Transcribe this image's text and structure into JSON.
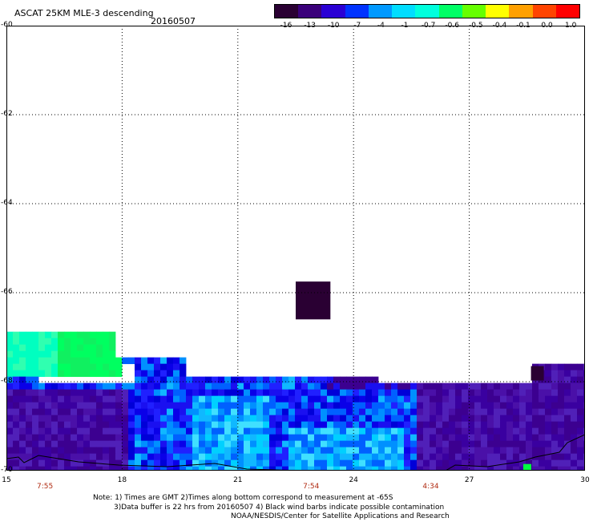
{
  "header": {
    "title": "ASCAT 25KM MLE-3 descending",
    "date": "20160507"
  },
  "colorbar": {
    "labels": [
      "-16",
      "-13",
      "-10",
      "-7",
      "-4",
      "-1",
      "-0.7",
      "-0.6",
      "-0.5",
      "-0.4",
      "-0.1",
      "0.0",
      "1.0"
    ],
    "colors": [
      "#2a0033",
      "#3a007a",
      "#2a00d4",
      "#0033ff",
      "#0099ff",
      "#00ddff",
      "#00ffdd",
      "#00ff66",
      "#66ff00",
      "#ffff00",
      "#ffa000",
      "#ff4400",
      "#ff0000"
    ]
  },
  "map": {
    "lat_ticks": [
      "-60",
      "-62",
      "-64",
      "-66",
      "-68",
      "-70"
    ],
    "lon_ticks": [
      "15",
      "18",
      "21",
      "24",
      "27",
      "30"
    ],
    "pass_times": [
      {
        "label": "7:55",
        "lon": 16
      },
      {
        "label": "7:54",
        "lon": 22.9
      },
      {
        "label": "4:34",
        "lon": 26
      }
    ]
  },
  "notes": {
    "line1": "Note: 1) Times are GMT 2)Times along bottom correspond to measurement at -65S",
    "line2": "3)Data buffer is 22 hrs from 20160507 4) Black wind barbs indicate possible contamination",
    "line3": "NOAA/NESDIS/Center for Satellite Applications and Research"
  }
}
